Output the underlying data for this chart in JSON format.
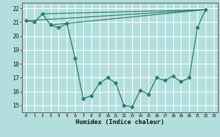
{
  "xlabel": "Humidex (Indice chaleur)",
  "bg_color": "#b2dede",
  "grid_color": "#ffffff",
  "line_color": "#2e7d6e",
  "xlim": [
    -0.5,
    23.5
  ],
  "ylim": [
    14.5,
    22.4
  ],
  "yticks": [
    15,
    16,
    17,
    18,
    19,
    20,
    21,
    22
  ],
  "xticks": [
    0,
    1,
    2,
    3,
    4,
    5,
    6,
    7,
    8,
    9,
    10,
    11,
    12,
    13,
    14,
    15,
    16,
    17,
    18,
    19,
    20,
    21,
    22,
    23
  ],
  "main_x": [
    0,
    1,
    2,
    3,
    4,
    5,
    6,
    7,
    8,
    9,
    10,
    11,
    12,
    13,
    14,
    15,
    16,
    17,
    18,
    19,
    20,
    21,
    22
  ],
  "main_y": [
    21.1,
    21.0,
    21.6,
    20.8,
    20.6,
    20.9,
    18.4,
    15.5,
    15.7,
    16.6,
    17.0,
    16.6,
    15.0,
    14.9,
    16.1,
    15.8,
    17.0,
    16.8,
    17.1,
    16.7,
    17.0,
    20.6,
    21.9
  ],
  "trend_lines": [
    {
      "x": [
        0,
        22
      ],
      "y": [
        21.1,
        21.9
      ]
    },
    {
      "x": [
        2,
        22
      ],
      "y": [
        21.6,
        21.9
      ]
    },
    {
      "x": [
        3,
        22
      ],
      "y": [
        20.8,
        21.9
      ]
    }
  ]
}
